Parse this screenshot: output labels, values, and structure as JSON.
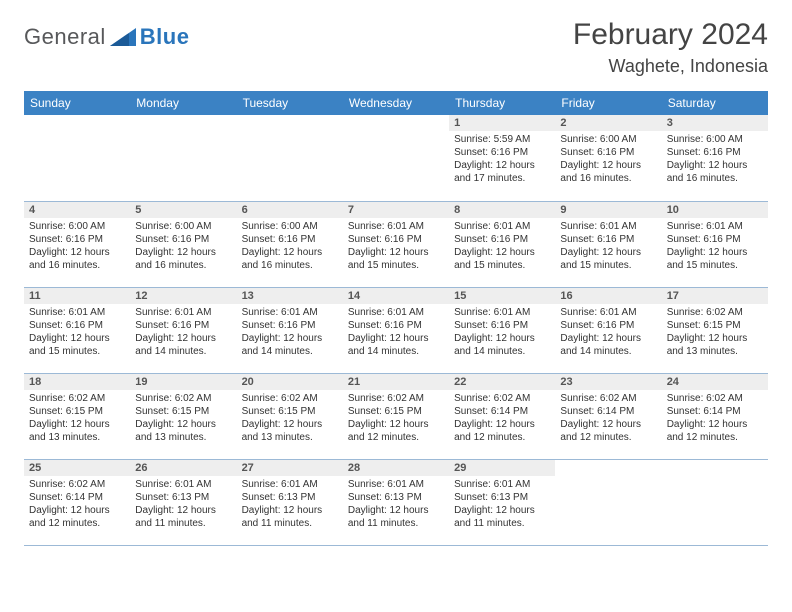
{
  "brand": {
    "general": "General",
    "blue": "Blue"
  },
  "title": "February 2024",
  "location": "Waghete, Indonesia",
  "colors": {
    "header_bg": "#3b82c4",
    "header_text": "#ffffff",
    "daynum_bg": "#eeeeee",
    "border": "#9cb9d6",
    "page_bg": "#ffffff",
    "text": "#333333",
    "logo_gray": "#57585a",
    "logo_blue": "#2a75bb"
  },
  "typography": {
    "title_fontsize": 30,
    "location_fontsize": 18,
    "weekday_fontsize": 12,
    "daynum_fontsize": 11,
    "body_fontsize": 10
  },
  "weekdays": [
    "Sunday",
    "Monday",
    "Tuesday",
    "Wednesday",
    "Thursday",
    "Friday",
    "Saturday"
  ],
  "weeks": [
    [
      {
        "empty": true
      },
      {
        "empty": true
      },
      {
        "empty": true
      },
      {
        "empty": true
      },
      {
        "day": "1",
        "sunrise": "Sunrise: 5:59 AM",
        "sunset": "Sunset: 6:16 PM",
        "daylight": "Daylight: 12 hours and 17 minutes."
      },
      {
        "day": "2",
        "sunrise": "Sunrise: 6:00 AM",
        "sunset": "Sunset: 6:16 PM",
        "daylight": "Daylight: 12 hours and 16 minutes."
      },
      {
        "day": "3",
        "sunrise": "Sunrise: 6:00 AM",
        "sunset": "Sunset: 6:16 PM",
        "daylight": "Daylight: 12 hours and 16 minutes."
      }
    ],
    [
      {
        "day": "4",
        "sunrise": "Sunrise: 6:00 AM",
        "sunset": "Sunset: 6:16 PM",
        "daylight": "Daylight: 12 hours and 16 minutes."
      },
      {
        "day": "5",
        "sunrise": "Sunrise: 6:00 AM",
        "sunset": "Sunset: 6:16 PM",
        "daylight": "Daylight: 12 hours and 16 minutes."
      },
      {
        "day": "6",
        "sunrise": "Sunrise: 6:00 AM",
        "sunset": "Sunset: 6:16 PM",
        "daylight": "Daylight: 12 hours and 16 minutes."
      },
      {
        "day": "7",
        "sunrise": "Sunrise: 6:01 AM",
        "sunset": "Sunset: 6:16 PM",
        "daylight": "Daylight: 12 hours and 15 minutes."
      },
      {
        "day": "8",
        "sunrise": "Sunrise: 6:01 AM",
        "sunset": "Sunset: 6:16 PM",
        "daylight": "Daylight: 12 hours and 15 minutes."
      },
      {
        "day": "9",
        "sunrise": "Sunrise: 6:01 AM",
        "sunset": "Sunset: 6:16 PM",
        "daylight": "Daylight: 12 hours and 15 minutes."
      },
      {
        "day": "10",
        "sunrise": "Sunrise: 6:01 AM",
        "sunset": "Sunset: 6:16 PM",
        "daylight": "Daylight: 12 hours and 15 minutes."
      }
    ],
    [
      {
        "day": "11",
        "sunrise": "Sunrise: 6:01 AM",
        "sunset": "Sunset: 6:16 PM",
        "daylight": "Daylight: 12 hours and 15 minutes."
      },
      {
        "day": "12",
        "sunrise": "Sunrise: 6:01 AM",
        "sunset": "Sunset: 6:16 PM",
        "daylight": "Daylight: 12 hours and 14 minutes."
      },
      {
        "day": "13",
        "sunrise": "Sunrise: 6:01 AM",
        "sunset": "Sunset: 6:16 PM",
        "daylight": "Daylight: 12 hours and 14 minutes."
      },
      {
        "day": "14",
        "sunrise": "Sunrise: 6:01 AM",
        "sunset": "Sunset: 6:16 PM",
        "daylight": "Daylight: 12 hours and 14 minutes."
      },
      {
        "day": "15",
        "sunrise": "Sunrise: 6:01 AM",
        "sunset": "Sunset: 6:16 PM",
        "daylight": "Daylight: 12 hours and 14 minutes."
      },
      {
        "day": "16",
        "sunrise": "Sunrise: 6:01 AM",
        "sunset": "Sunset: 6:16 PM",
        "daylight": "Daylight: 12 hours and 14 minutes."
      },
      {
        "day": "17",
        "sunrise": "Sunrise: 6:02 AM",
        "sunset": "Sunset: 6:15 PM",
        "daylight": "Daylight: 12 hours and 13 minutes."
      }
    ],
    [
      {
        "day": "18",
        "sunrise": "Sunrise: 6:02 AM",
        "sunset": "Sunset: 6:15 PM",
        "daylight": "Daylight: 12 hours and 13 minutes."
      },
      {
        "day": "19",
        "sunrise": "Sunrise: 6:02 AM",
        "sunset": "Sunset: 6:15 PM",
        "daylight": "Daylight: 12 hours and 13 minutes."
      },
      {
        "day": "20",
        "sunrise": "Sunrise: 6:02 AM",
        "sunset": "Sunset: 6:15 PM",
        "daylight": "Daylight: 12 hours and 13 minutes."
      },
      {
        "day": "21",
        "sunrise": "Sunrise: 6:02 AM",
        "sunset": "Sunset: 6:15 PM",
        "daylight": "Daylight: 12 hours and 12 minutes."
      },
      {
        "day": "22",
        "sunrise": "Sunrise: 6:02 AM",
        "sunset": "Sunset: 6:14 PM",
        "daylight": "Daylight: 12 hours and 12 minutes."
      },
      {
        "day": "23",
        "sunrise": "Sunrise: 6:02 AM",
        "sunset": "Sunset: 6:14 PM",
        "daylight": "Daylight: 12 hours and 12 minutes."
      },
      {
        "day": "24",
        "sunrise": "Sunrise: 6:02 AM",
        "sunset": "Sunset: 6:14 PM",
        "daylight": "Daylight: 12 hours and 12 minutes."
      }
    ],
    [
      {
        "day": "25",
        "sunrise": "Sunrise: 6:02 AM",
        "sunset": "Sunset: 6:14 PM",
        "daylight": "Daylight: 12 hours and 12 minutes."
      },
      {
        "day": "26",
        "sunrise": "Sunrise: 6:01 AM",
        "sunset": "Sunset: 6:13 PM",
        "daylight": "Daylight: 12 hours and 11 minutes."
      },
      {
        "day": "27",
        "sunrise": "Sunrise: 6:01 AM",
        "sunset": "Sunset: 6:13 PM",
        "daylight": "Daylight: 12 hours and 11 minutes."
      },
      {
        "day": "28",
        "sunrise": "Sunrise: 6:01 AM",
        "sunset": "Sunset: 6:13 PM",
        "daylight": "Daylight: 12 hours and 11 minutes."
      },
      {
        "day": "29",
        "sunrise": "Sunrise: 6:01 AM",
        "sunset": "Sunset: 6:13 PM",
        "daylight": "Daylight: 12 hours and 11 minutes."
      },
      {
        "empty": true
      },
      {
        "empty": true
      }
    ]
  ]
}
